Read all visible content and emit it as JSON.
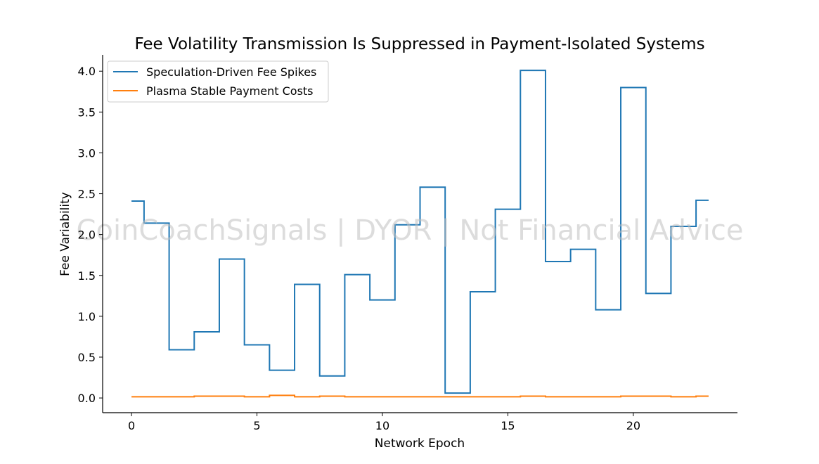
{
  "chart_data": {
    "type": "line",
    "step": "mid",
    "title": "Fee Volatility Transmission Is Suppressed in Payment-Isolated Systems",
    "xlabel": "Network Epoch",
    "ylabel": "Fee Variability",
    "xlim": [
      -1.15,
      24.15
    ],
    "ylim": [
      -0.18,
      4.2
    ],
    "xticks": [
      0,
      5,
      10,
      15,
      20
    ],
    "yticks": [
      0.0,
      0.5,
      1.0,
      1.5,
      2.0,
      2.5,
      3.0,
      3.5,
      4.0
    ],
    "ytick_format": 1,
    "legend_position": "upper-left",
    "grid": false,
    "watermark": "CoinCoachSignals | DYOR | Not Financial Advice",
    "x": [
      0,
      1,
      2,
      3,
      4,
      5,
      6,
      7,
      8,
      9,
      10,
      11,
      12,
      13,
      14,
      15,
      16,
      17,
      18,
      19,
      20,
      21,
      22,
      23
    ],
    "series": [
      {
        "name": "Speculation-Driven Fee Spikes",
        "color": "#1f77b4",
        "values": [
          2.41,
          2.14,
          0.59,
          0.81,
          1.7,
          0.65,
          0.34,
          1.39,
          0.27,
          1.51,
          1.2,
          2.12,
          2.58,
          0.06,
          1.3,
          2.31,
          4.01,
          1.67,
          1.82,
          1.08,
          3.8,
          1.28,
          2.1,
          2.42
        ]
      },
      {
        "name": "Plasma Stable Payment Costs",
        "color": "#ff7f0e",
        "values": [
          0.015,
          0.015,
          0.015,
          0.022,
          0.022,
          0.015,
          0.032,
          0.015,
          0.022,
          0.015,
          0.015,
          0.015,
          0.015,
          0.015,
          0.015,
          0.015,
          0.022,
          0.015,
          0.015,
          0.015,
          0.022,
          0.022,
          0.015,
          0.022
        ]
      }
    ]
  }
}
